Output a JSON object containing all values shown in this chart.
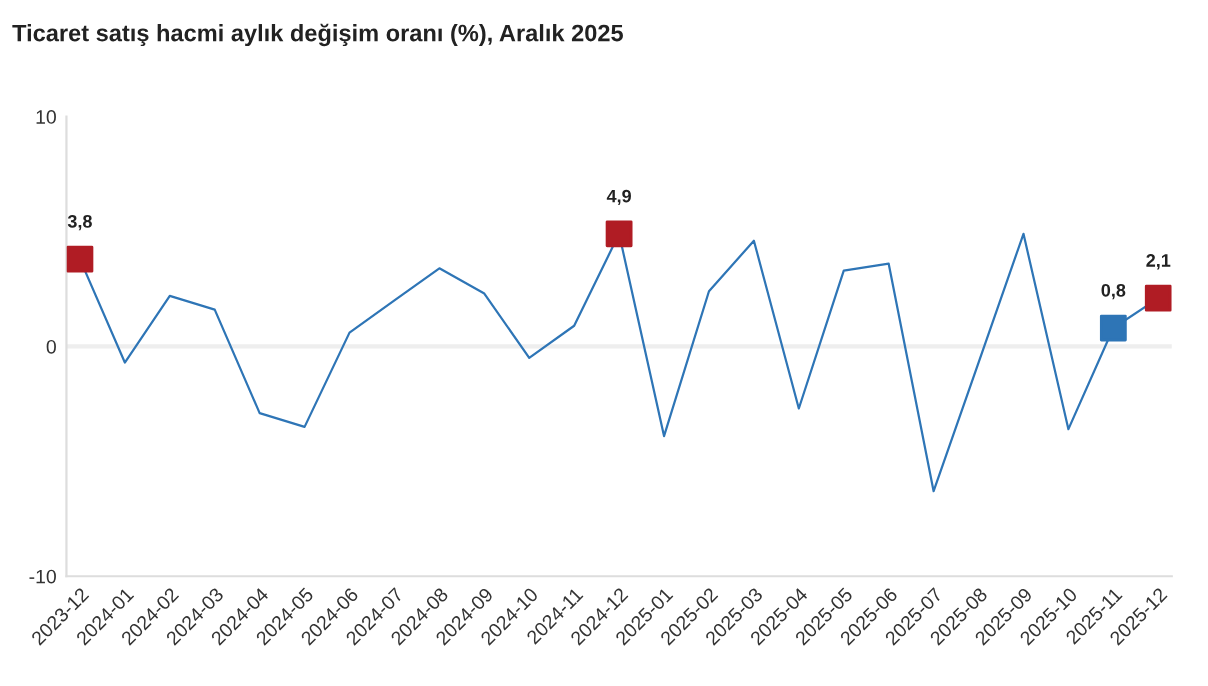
{
  "chart_data": {
    "type": "line",
    "title": "Ticaret satış hacmi aylık değişim oranı (%), Aralık 2025",
    "categories": [
      "2023-12",
      "2024-01",
      "2024-02",
      "2024-03",
      "2024-04",
      "2024-05",
      "2024-06",
      "2024-07",
      "2024-08",
      "2024-09",
      "2024-10",
      "2024-11",
      "2024-12",
      "2025-01",
      "2025-02",
      "2025-03",
      "2025-04",
      "2025-05",
      "2025-06",
      "2025-07",
      "2025-08",
      "2025-09",
      "2025-10",
      "2025-11",
      "2025-12"
    ],
    "series": [
      {
        "color": "#2e75b6",
        "values": [
          3.8,
          -0.7,
          2.2,
          1.6,
          -2.9,
          -3.5,
          0.6,
          2.0,
          3.4,
          2.3,
          -0.5,
          0.9,
          4.9,
          -3.9,
          2.4,
          4.6,
          -2.7,
          3.3,
          3.6,
          -6.3,
          -0.7,
          4.9,
          -3.6,
          0.8,
          2.1
        ]
      },
      {
        "type": "scatter",
        "marker": "square",
        "colors": [
          "#b01c24",
          null,
          null,
          null,
          null,
          null,
          null,
          null,
          null,
          null,
          null,
          null,
          "#b01c24",
          null,
          null,
          null,
          null,
          null,
          null,
          null,
          null,
          null,
          null,
          "#2e75b6",
          "#b01c24"
        ],
        "values": [
          3.8,
          null,
          null,
          null,
          null,
          null,
          null,
          null,
          null,
          null,
          null,
          null,
          4.9,
          null,
          null,
          null,
          null,
          null,
          null,
          null,
          null,
          null,
          null,
          0.8,
          2.1
        ],
        "value_labels": [
          "3,8",
          null,
          null,
          null,
          null,
          null,
          null,
          null,
          null,
          null,
          null,
          null,
          "4,9",
          null,
          null,
          null,
          null,
          null,
          null,
          null,
          null,
          null,
          null,
          "0,8",
          "2,1"
        ]
      }
    ],
    "ylim": [
      -10,
      10
    ],
    "yticks": [
      -10,
      0,
      10
    ],
    "ref_lines": [
      {
        "axis": "y",
        "value": 0,
        "color": "#eeeeee"
      }
    ],
    "grid": false,
    "legend": false
  }
}
